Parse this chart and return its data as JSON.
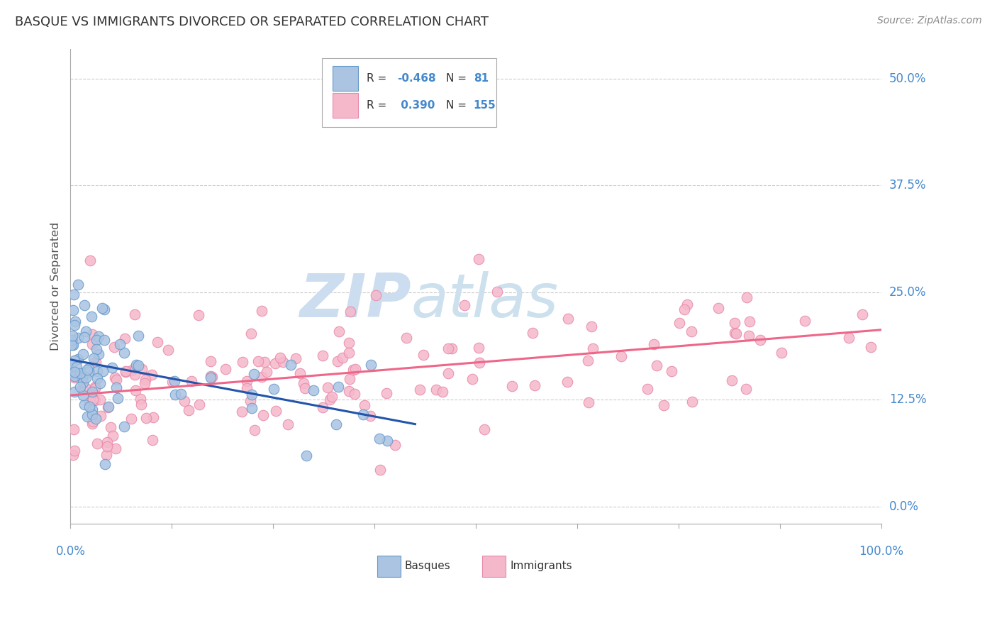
{
  "title": "BASQUE VS IMMIGRANTS DIVORCED OR SEPARATED CORRELATION CHART",
  "source": "Source: ZipAtlas.com",
  "ylabel": "Divorced or Separated",
  "ytick_labels": [
    "0.0%",
    "12.5%",
    "25.0%",
    "37.5%",
    "50.0%"
  ],
  "ytick_values": [
    0.0,
    0.125,
    0.25,
    0.375,
    0.5
  ],
  "xrange": [
    0.0,
    1.0
  ],
  "yrange": [
    -0.02,
    0.535
  ],
  "basque_R": -0.468,
  "basque_N": 81,
  "immigrant_R": 0.39,
  "immigrant_N": 155,
  "basque_color": "#aac4e2",
  "basque_edge_color": "#6699cc",
  "immigrant_color": "#f5b8cb",
  "immigrant_edge_color": "#e888a8",
  "trend_basque_color": "#2255aa",
  "trend_immigrant_color": "#ee6688",
  "background_color": "#ffffff",
  "grid_color": "#cccccc",
  "title_fontsize": 13,
  "label_color": "#4488cc",
  "text_color": "#333333",
  "watermark_zip_color": "#ccddf0",
  "watermark_atlas_color": "#cce0ee"
}
